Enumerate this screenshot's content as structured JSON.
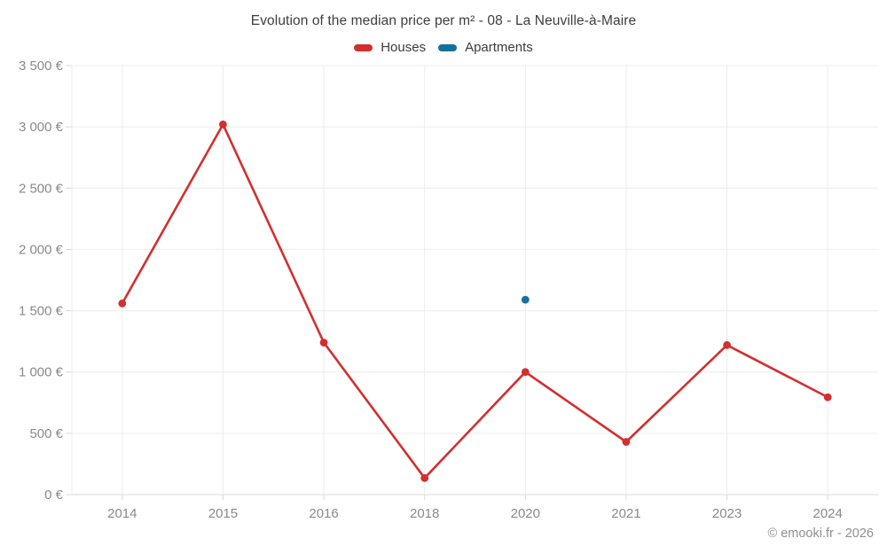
{
  "title": "Evolution of the median price per m² - 08 - La Neuville-à-Maire",
  "legend": {
    "items": [
      {
        "label": "Houses",
        "color": "#d32f2f"
      },
      {
        "label": "Apartments",
        "color": "#16709f"
      }
    ]
  },
  "footer": {
    "credit": "© emooki.fr - 2026"
  },
  "chart_data": {
    "type": "line",
    "title": "Evolution of the median price per m² - 08 - La Neuville-à-Maire",
    "categories": [
      "2014",
      "2015",
      "2016",
      "2018",
      "2020",
      "2021",
      "2023",
      "2024"
    ],
    "series": [
      {
        "name": "Houses",
        "color": "#d32f2f",
        "marker": "circle",
        "line": true,
        "values": [
          1560,
          3020,
          1240,
          135,
          1000,
          430,
          1220,
          795
        ]
      },
      {
        "name": "Apartments",
        "color": "#16709f",
        "marker": "circle",
        "line": false,
        "values": [
          null,
          null,
          null,
          null,
          1590,
          null,
          null,
          null
        ]
      }
    ],
    "xlabel": "",
    "ylabel": "",
    "ylim": [
      0,
      3500
    ],
    "ytick_step": 500,
    "ytick_labels": [
      "0 €",
      "500 €",
      "1 000 €",
      "1 500 €",
      "2 000 €",
      "2 500 €",
      "3 000 €",
      "3 500 €"
    ],
    "grid": true,
    "legend_position": "top",
    "colors": {
      "gridline": "#ececec",
      "baseline": "#d8d8d8",
      "tick": "#d8d8d8",
      "tick_text": "#898989"
    }
  }
}
